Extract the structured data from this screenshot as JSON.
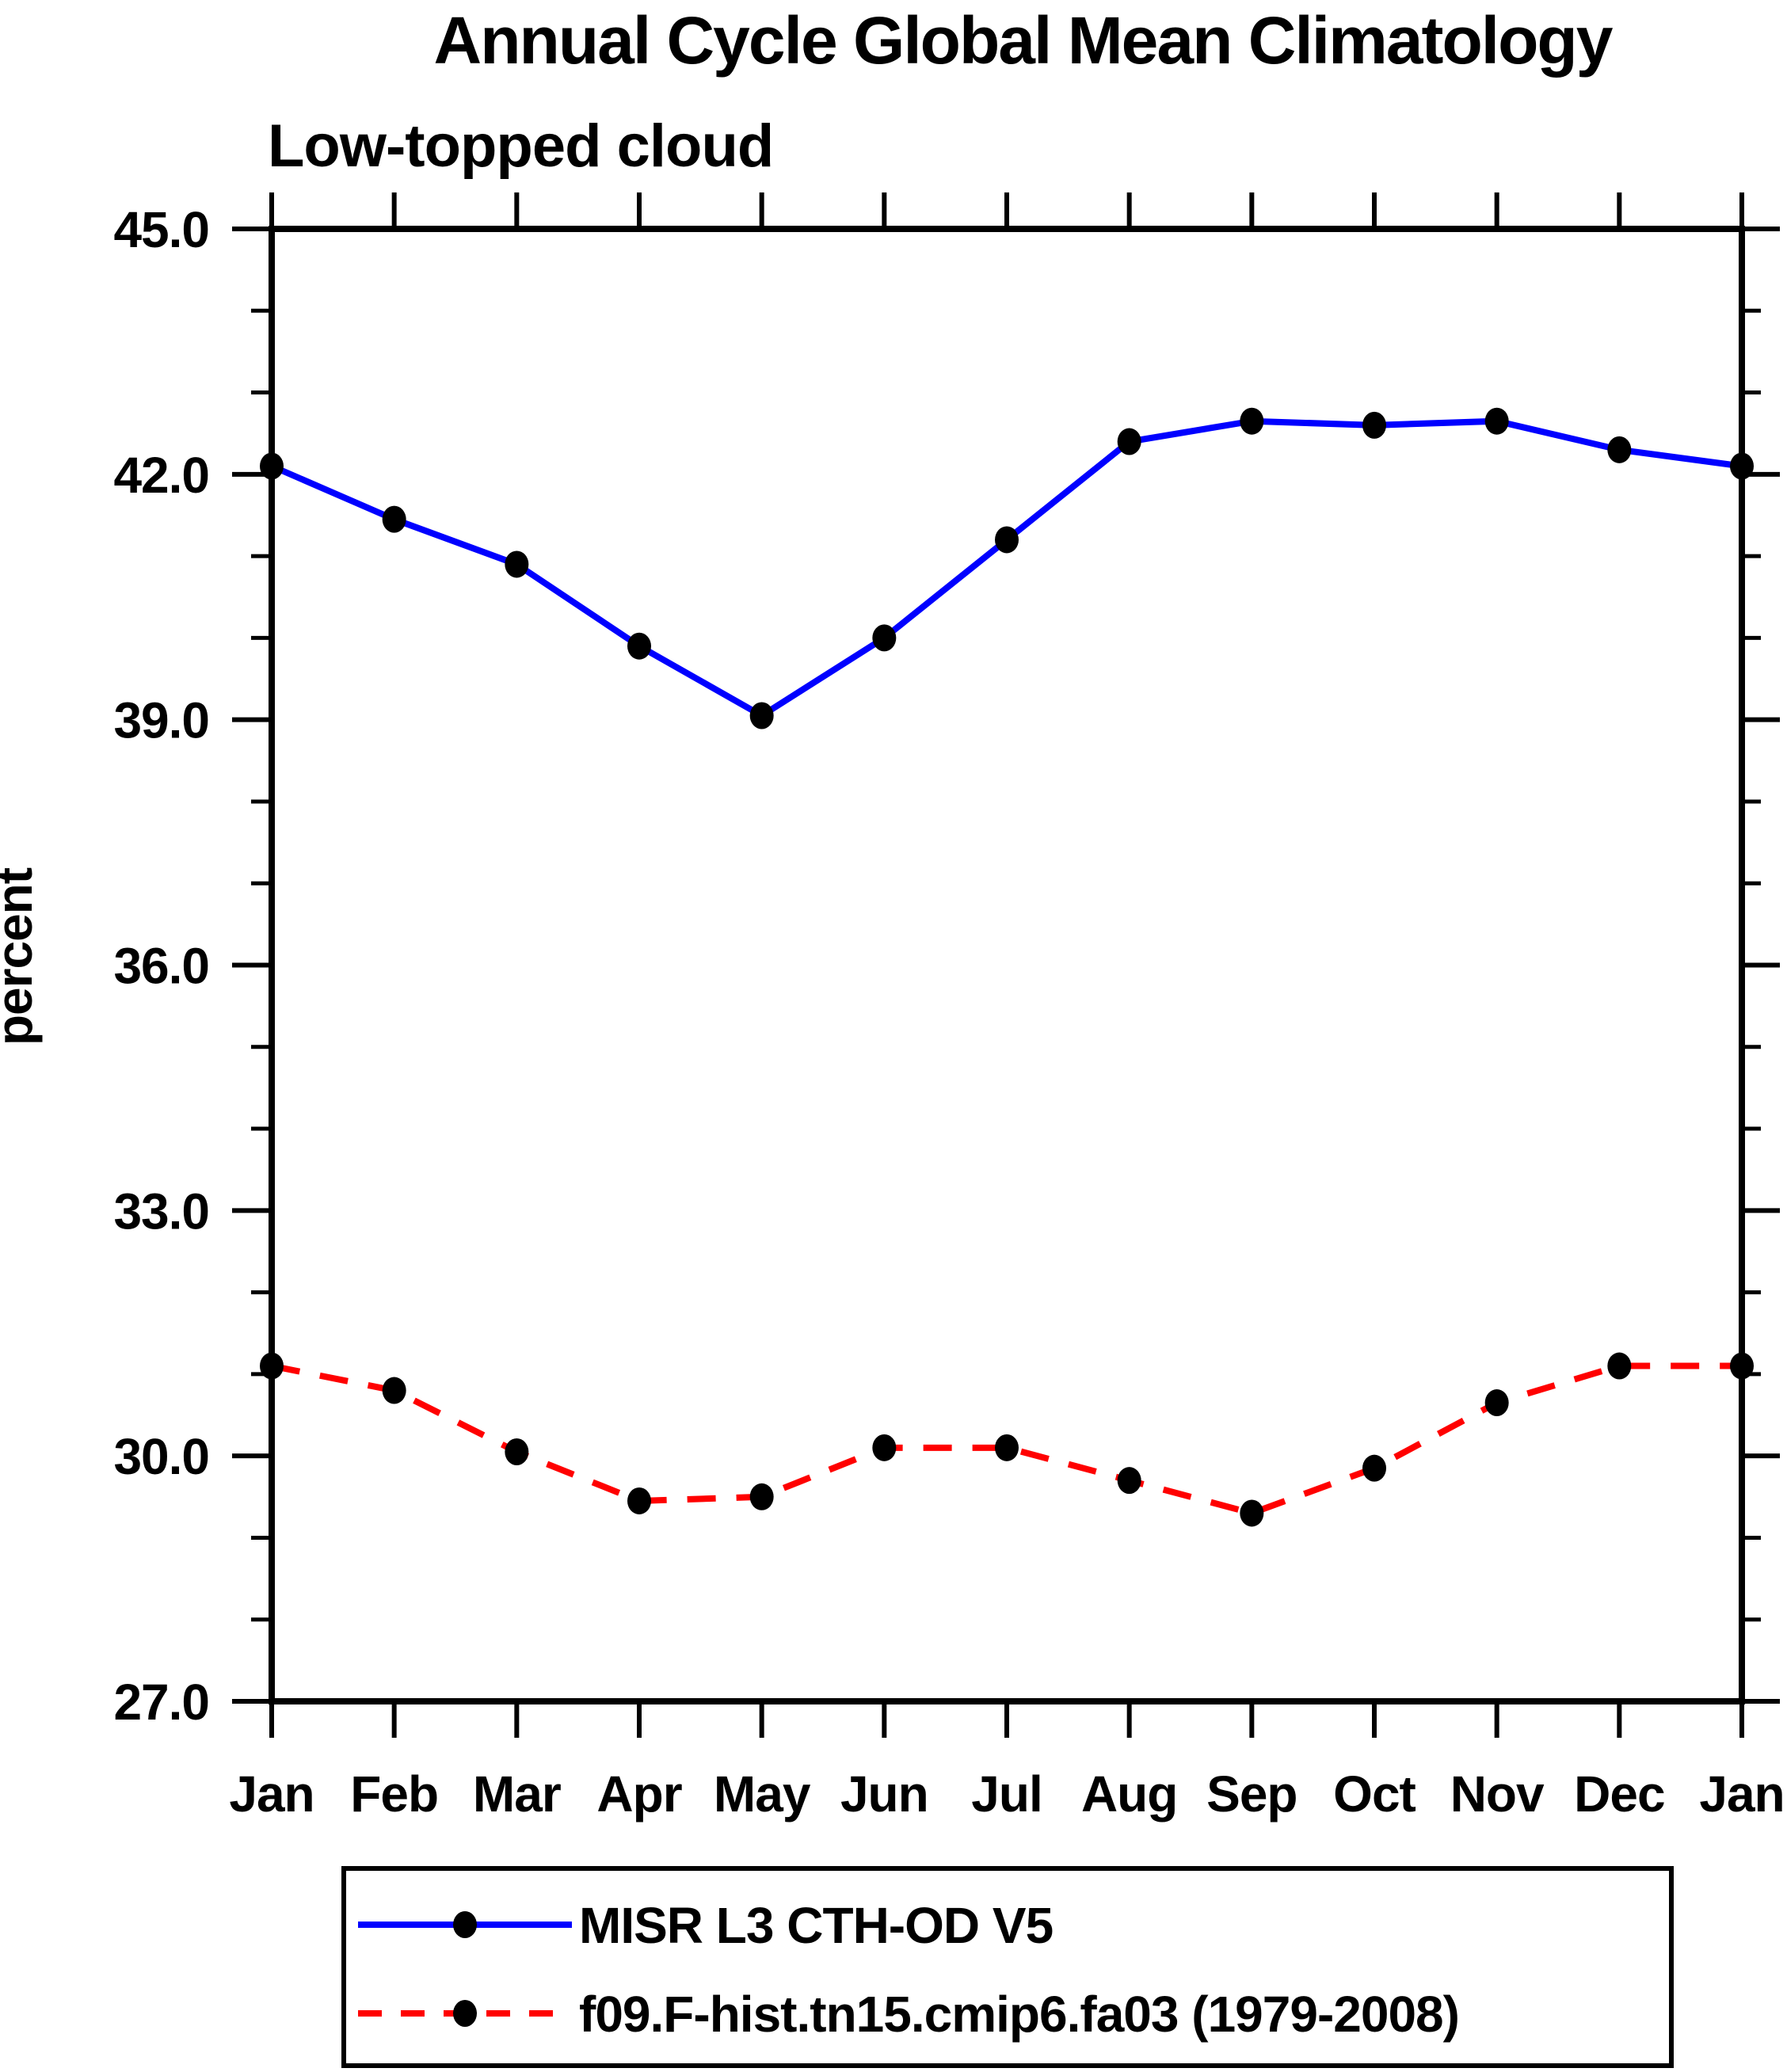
{
  "chart_data": {
    "type": "line",
    "title": "Annual Cycle Global Mean Climatology",
    "subtitle": "Low-topped cloud",
    "ylabel": "percent",
    "xlabel": "",
    "categories": [
      "Jan",
      "Feb",
      "Mar",
      "Apr",
      "May",
      "Jun",
      "Jul",
      "Aug",
      "Sep",
      "Oct",
      "Nov",
      "Dec",
      "Jan"
    ],
    "ylim": [
      27.0,
      45.0
    ],
    "ytick_values": [
      27,
      30,
      33,
      36,
      39,
      42,
      45
    ],
    "ytick_labels": [
      "27.0",
      "30.0",
      "33.0",
      "36.0",
      "39.0",
      "42.0",
      "45.0"
    ],
    "minor_tick_step": 1.0,
    "grid": false,
    "legend_position": "bottom",
    "background_color": "#ffffff",
    "axis_color": "#000000",
    "marker_color": "#000000",
    "series": [
      {
        "name": "MISR L3 CTH-OD V5",
        "color": "#0000ff",
        "line_style": "solid",
        "marker": "filled-circle",
        "values": [
          42.1,
          41.45,
          40.9,
          39.9,
          39.05,
          40.0,
          41.2,
          42.4,
          42.65,
          42.6,
          42.65,
          42.3,
          42.1
        ]
      },
      {
        "name": "f09.F-hist.tn15.cmip6.fa03 (1979-2008)",
        "color": "#ff0000",
        "line_style": "dashed",
        "marker": "filled-circle",
        "values": [
          31.1,
          30.8,
          30.05,
          29.45,
          29.5,
          30.1,
          30.1,
          29.7,
          29.3,
          29.85,
          30.65,
          31.1,
          31.1
        ]
      }
    ]
  }
}
